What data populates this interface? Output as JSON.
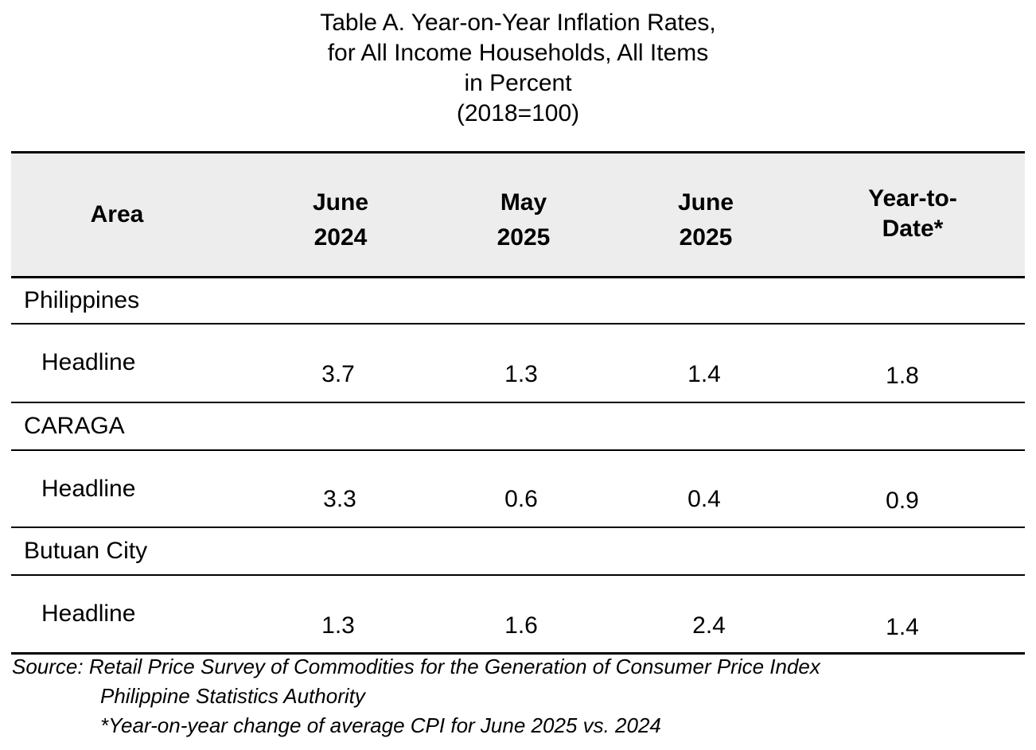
{
  "title": {
    "line1": "Table A. Year-on-Year Inflation Rates,",
    "line2": "for All Income Households, All Items",
    "line3": "in Percent",
    "line4": "(2018=100)"
  },
  "table": {
    "headers": {
      "area": "Area",
      "col1": [
        "June",
        "2024"
      ],
      "col2": [
        "May",
        "2025"
      ],
      "col3": [
        "June",
        "2025"
      ],
      "col4": [
        "Year-to-",
        "Date*"
      ]
    },
    "sections": [
      {
        "area": "Philippines",
        "row_label": "Headline",
        "values": [
          "3.7",
          "1.3",
          "1.4",
          "1.8"
        ]
      },
      {
        "area": "CARAGA",
        "row_label": "Headline",
        "values": [
          "3.3",
          "0.6",
          "0.4",
          "0.9"
        ]
      },
      {
        "area": "Butuan City",
        "row_label": "Headline",
        "values": [
          "1.3",
          "1.6",
          "2.4",
          "1.4"
        ]
      }
    ]
  },
  "footer": {
    "source": "Source: Retail Price Survey of Commodities for the Generation of Consumer Price Index",
    "agency": "Philippine Statistics Authority",
    "note": "*Year-on-year change of average CPI for June 2025 vs. 2024"
  }
}
